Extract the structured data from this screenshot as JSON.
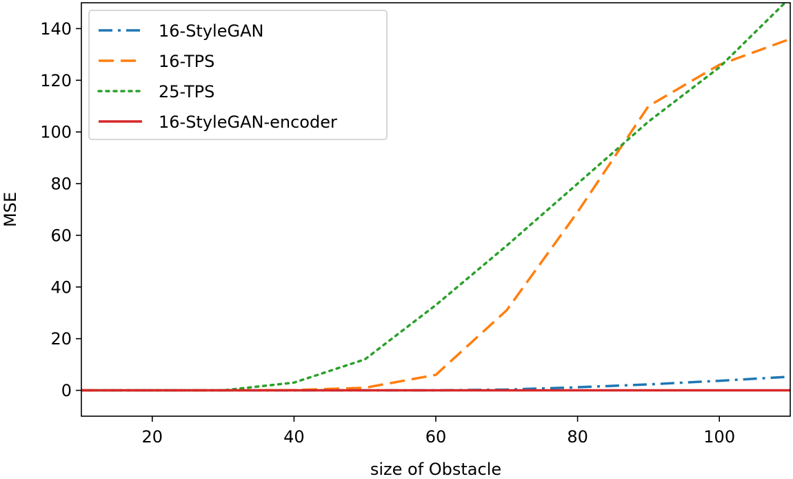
{
  "chart_data": {
    "type": "line",
    "title": "",
    "xlabel": "size of Obstacle",
    "ylabel": "MSE",
    "xlim": [
      10,
      110
    ],
    "ylim": [
      -10,
      150
    ],
    "xticks": [
      20,
      40,
      60,
      80,
      100
    ],
    "yticks": [
      0,
      20,
      40,
      60,
      80,
      100,
      120,
      140
    ],
    "grid": false,
    "legend_position": "top-left",
    "x": [
      10,
      20,
      30,
      40,
      50,
      60,
      70,
      80,
      90,
      100,
      110
    ],
    "series": [
      {
        "name": "16-StyleGAN",
        "color": "#1f77b4",
        "dash": "dashdot",
        "values": [
          0,
          0,
          0,
          0,
          0,
          0,
          0.3,
          1.2,
          2.3,
          3.7,
          5.3
        ]
      },
      {
        "name": "16-TPS",
        "color": "#ff7f0e",
        "dash": "dashed",
        "values": [
          0,
          0,
          0,
          0.1,
          1,
          6,
          31,
          69,
          110,
          126,
          136
        ]
      },
      {
        "name": "25-TPS",
        "color": "#2ca02c",
        "dash": "dotted",
        "values": [
          0,
          0,
          0,
          3,
          12,
          33,
          56,
          80,
          104,
          125,
          152
        ]
      },
      {
        "name": "16-StyleGAN-encoder",
        "color": "#d62728",
        "dash": "solid",
        "values": [
          0,
          0,
          0,
          0,
          0,
          0,
          0,
          0,
          0,
          0,
          0
        ]
      }
    ]
  }
}
